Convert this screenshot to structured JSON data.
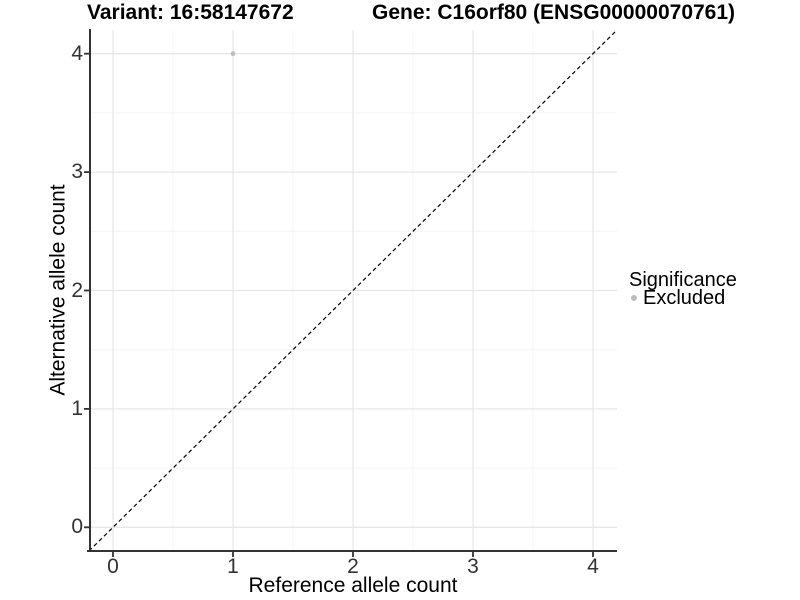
{
  "chart_data": {
    "type": "scatter",
    "titles": {
      "left": "Variant: 16:58147672",
      "right": "Gene: C16orf80 (ENSG00000070761)"
    },
    "xlabel": "Reference allele count",
    "ylabel": "Alternative allele count",
    "xlim": [
      -0.2,
      4.2
    ],
    "ylim": [
      -0.2,
      4.2
    ],
    "x_ticks": [
      0,
      1,
      2,
      3,
      4
    ],
    "y_ticks": [
      0,
      1,
      2,
      3,
      4
    ],
    "minor_step": 0.5,
    "grid": "major_and_minor_on_white",
    "identity_line": {
      "slope": 1,
      "intercept": 0,
      "style": "dashed",
      "color": "#000000"
    },
    "points": [
      {
        "x": 1,
        "y": 4,
        "significance": "Excluded",
        "color": "#bebebe",
        "radius": 2.4
      }
    ],
    "legend": {
      "title": "Significance",
      "position": "right",
      "entries": [
        {
          "label": "Excluded",
          "color": "#bebebe",
          "marker": "circle"
        }
      ]
    },
    "colors": {
      "axis_line": "#333333",
      "tick_label": "#333333",
      "grid_major": "#e7e7e7",
      "grid_minor": "#f4f4f4",
      "background": "#ffffff"
    }
  }
}
